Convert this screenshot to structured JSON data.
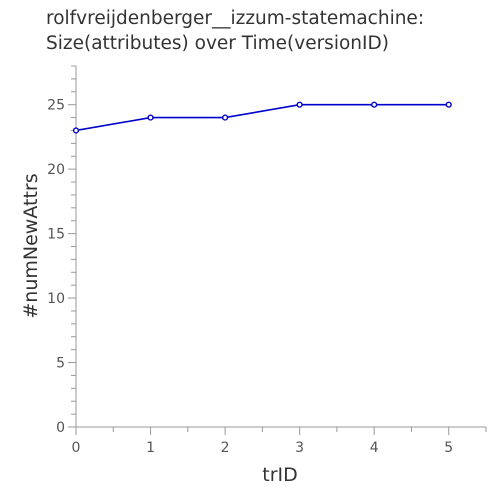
{
  "chart_data": {
    "type": "line",
    "title_lines": [
      "rolfvreijdenberger__izzum-statemachine:",
      "Size(attributes) over Time(versionID)"
    ],
    "xlabel": "trID",
    "ylabel": "#numNewAttrs",
    "x": [
      0,
      1,
      2,
      3,
      4,
      5
    ],
    "series": [
      {
        "values": [
          23,
          24,
          24,
          25,
          25,
          25
        ]
      }
    ],
    "xlim": [
      0,
      5.5
    ],
    "ylim": [
      0,
      28
    ],
    "xticks": [
      0,
      1,
      2,
      3,
      4,
      5
    ],
    "yticks": [
      0,
      5,
      10,
      15,
      20,
      25
    ],
    "grid": false,
    "colors": {
      "line": "#0000cc",
      "axis": "#999999"
    }
  }
}
